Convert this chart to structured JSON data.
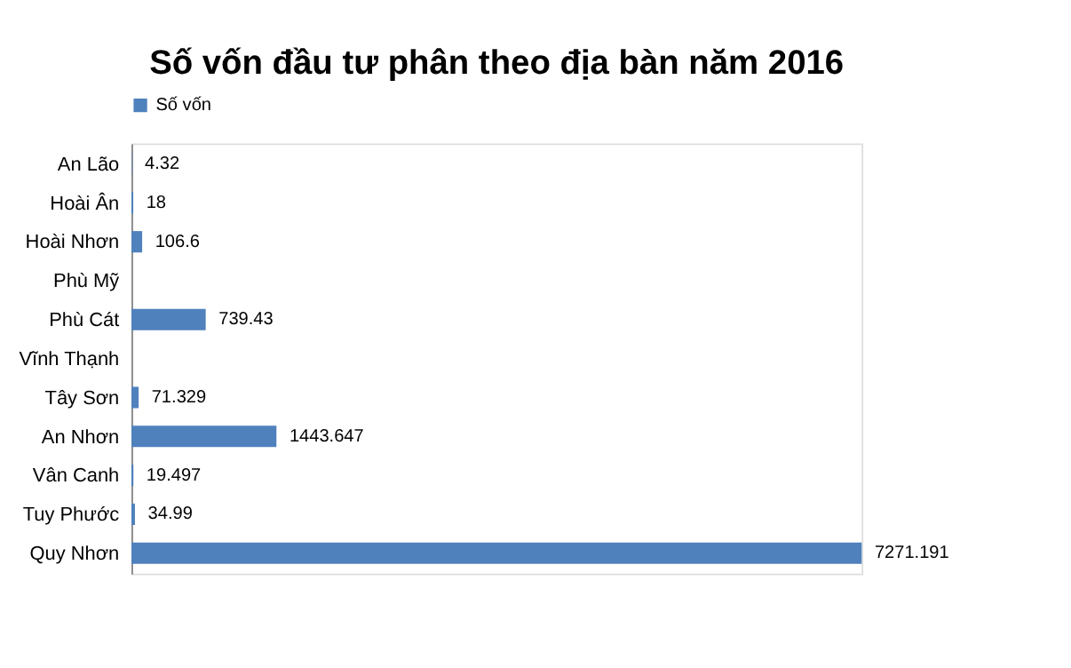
{
  "chart_data": {
    "type": "bar",
    "orientation": "horizontal",
    "title": "Số vốn đầu tư phân theo địa bàn năm 2016",
    "categories": [
      "An Lão",
      "Hoài Ân",
      "Hoài Nhơn",
      "Phù Mỹ",
      "Phù Cát",
      "Vĩnh Thạnh",
      "Tây Sơn",
      "An Nhơn",
      "Vân Canh",
      "Tuy Phước",
      "Quy Nhơn"
    ],
    "series": [
      {
        "name": "Số vốn",
        "color": "#4f81bd",
        "values": [
          4.32,
          18,
          106.6,
          null,
          739.43,
          null,
          71.329,
          1443.647,
          19.497,
          34.99,
          7271.191
        ]
      }
    ],
    "data_labels": true,
    "legend": "top",
    "grid": false,
    "tick_labels": "y"
  }
}
